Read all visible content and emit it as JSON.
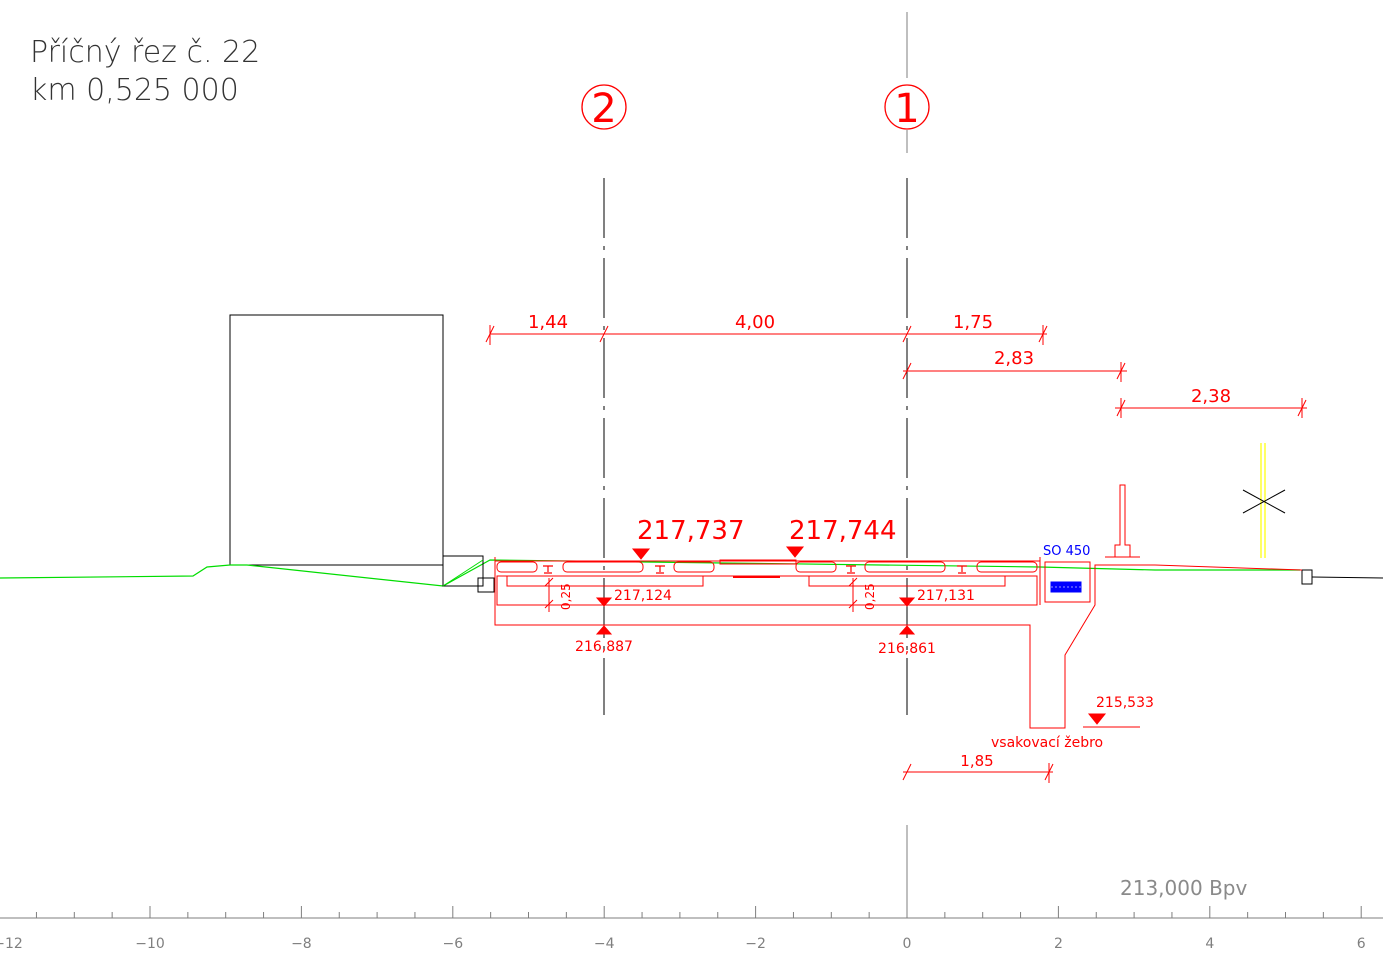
{
  "title": {
    "line1": "Příčný řez č. 22",
    "line2": "km 0,525 000"
  },
  "axes": {
    "one_label": "1",
    "two_label": "2"
  },
  "dimensions": {
    "d1": "1,44",
    "d2": "4,00",
    "d3": "1,75",
    "d4": "2,83",
    "d5": "2,38",
    "d6": "1,85",
    "d_025a": "0,25",
    "d_025b": "0,25"
  },
  "levels": {
    "l1": "217,737",
    "l2": "217,744",
    "l3": "217,124",
    "l4": "217,131",
    "l5": "216,887",
    "l6": "216,861",
    "l7": "215,533"
  },
  "labels": {
    "so450": "SO 450",
    "rib": "vsakovací  žebro",
    "datum": "213,000  Bpv"
  },
  "scale": {
    "ticks": [
      "−12",
      "−10",
      "−8",
      "−6",
      "−4",
      "−2",
      "0",
      "2",
      "4",
      "6"
    ]
  },
  "colors": {
    "design": "#ff0000",
    "terrain": "#00dd00",
    "existing": "#000000",
    "drain": "#0000ff",
    "marker": "#ffff00",
    "muted": "#7f7f7f"
  }
}
